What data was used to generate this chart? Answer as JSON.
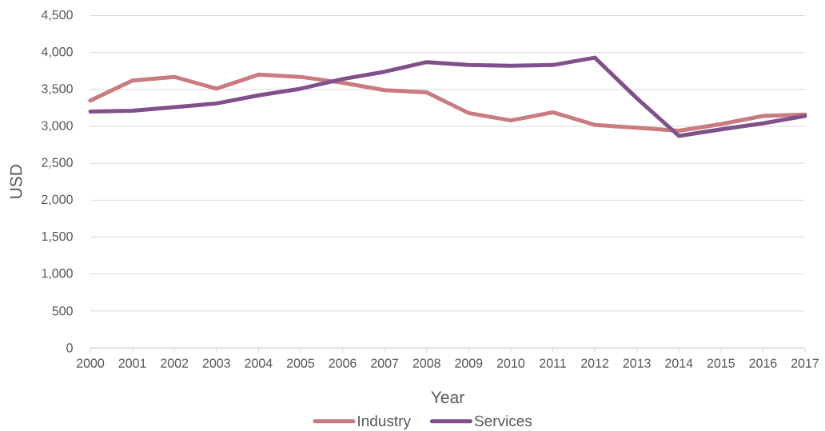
{
  "chart_data": {
    "type": "line",
    "xlabel": "Year",
    "ylabel": "USD",
    "categories": [
      "2000",
      "2001",
      "2002",
      "2003",
      "2004",
      "2005",
      "2006",
      "2007",
      "2008",
      "2009",
      "2010",
      "2011",
      "2012",
      "2013",
      "2014",
      "2015",
      "2016",
      "2017"
    ],
    "series": [
      {
        "name": "Industry",
        "color": "#c97b80",
        "values": [
          3350,
          3620,
          3670,
          3510,
          3700,
          3670,
          3590,
          3490,
          3460,
          3180,
          3080,
          3190,
          3020,
          2980,
          2940,
          3030,
          3140,
          3160
        ]
      },
      {
        "name": "Services",
        "color": "#80508c",
        "values": [
          3200,
          3210,
          3260,
          3310,
          3420,
          3510,
          3640,
          3740,
          3870,
          3830,
          3820,
          3830,
          3930,
          3380,
          2870,
          2960,
          3040,
          3140
        ]
      }
    ],
    "ylim": [
      0,
      4500
    ],
    "yticks": [
      0,
      500,
      {
        "value": 1000,
        "label": "1,000"
      },
      {
        "value": 1500,
        "label": "1,500"
      },
      {
        "value": 2000,
        "label": "2,000"
      },
      {
        "value": 2500,
        "label": "2,500"
      },
      {
        "value": 3000,
        "label": "3,000"
      },
      {
        "value": 3500,
        "label": "3,500"
      },
      {
        "value": 4000,
        "label": "4,000"
      },
      {
        "value": 4500,
        "label": "4,500"
      }
    ],
    "grid": "y",
    "legend": "bottom",
    "marker": "none"
  }
}
